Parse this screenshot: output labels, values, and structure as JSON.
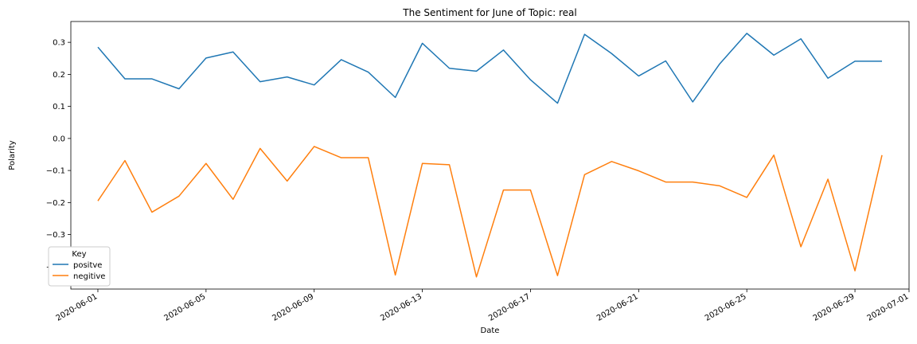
{
  "chart_data": {
    "type": "line",
    "title": "The Sentiment for June of Topic: real",
    "xlabel": "Date",
    "ylabel": "Polarity",
    "x": [
      "2020-06-01",
      "2020-06-02",
      "2020-06-03",
      "2020-06-04",
      "2020-06-05",
      "2020-06-06",
      "2020-06-07",
      "2020-06-08",
      "2020-06-09",
      "2020-06-10",
      "2020-06-11",
      "2020-06-12",
      "2020-06-13",
      "2020-06-14",
      "2020-06-15",
      "2020-06-16",
      "2020-06-17",
      "2020-06-18",
      "2020-06-19",
      "2020-06-20",
      "2020-06-21",
      "2020-06-22",
      "2020-06-23",
      "2020-06-24",
      "2020-06-25",
      "2020-06-26",
      "2020-06-27",
      "2020-06-28",
      "2020-06-29",
      "2020-06-30"
    ],
    "xlim": [
      "2020-05-31",
      "2020-07-01"
    ],
    "x_ticks": [
      "2020-06-01",
      "2020-06-05",
      "2020-06-09",
      "2020-06-13",
      "2020-06-17",
      "2020-06-21",
      "2020-06-25",
      "2020-06-29",
      "2020-07-01"
    ],
    "ylim": [
      -0.47,
      0.365
    ],
    "y_ticks": [
      -0.4,
      -0.3,
      -0.2,
      -0.1,
      0.0,
      0.1,
      0.2,
      0.3
    ],
    "y_tick_labels": [
      "−0.4",
      "−0.3",
      "−0.2",
      "−0.1",
      "0.0",
      "0.1",
      "0.2",
      "0.3"
    ],
    "grid": false,
    "legend": {
      "title": "Key",
      "placement": "lower-left"
    },
    "series": [
      {
        "name": "positve",
        "color": "#1f77b4",
        "values": [
          0.285,
          0.186,
          0.186,
          0.155,
          0.251,
          0.27,
          0.177,
          0.192,
          0.167,
          0.246,
          0.207,
          0.128,
          0.297,
          0.219,
          0.21,
          0.276,
          0.183,
          0.11,
          0.325,
          0.265,
          0.195,
          0.242,
          0.114,
          0.233,
          0.328,
          0.26,
          0.311,
          0.188,
          0.241,
          0.241
        ]
      },
      {
        "name": "negitive",
        "color": "#ff7f0e",
        "values": [
          -0.195,
          -0.069,
          -0.23,
          -0.18,
          -0.078,
          -0.19,
          -0.031,
          -0.133,
          -0.025,
          -0.06,
          -0.06,
          -0.426,
          -0.078,
          -0.082,
          -0.432,
          -0.161,
          -0.161,
          -0.428,
          -0.113,
          -0.072,
          -0.101,
          -0.136,
          -0.136,
          -0.148,
          -0.184,
          -0.052,
          -0.338,
          -0.127,
          -0.413,
          -0.052
        ]
      }
    ]
  }
}
